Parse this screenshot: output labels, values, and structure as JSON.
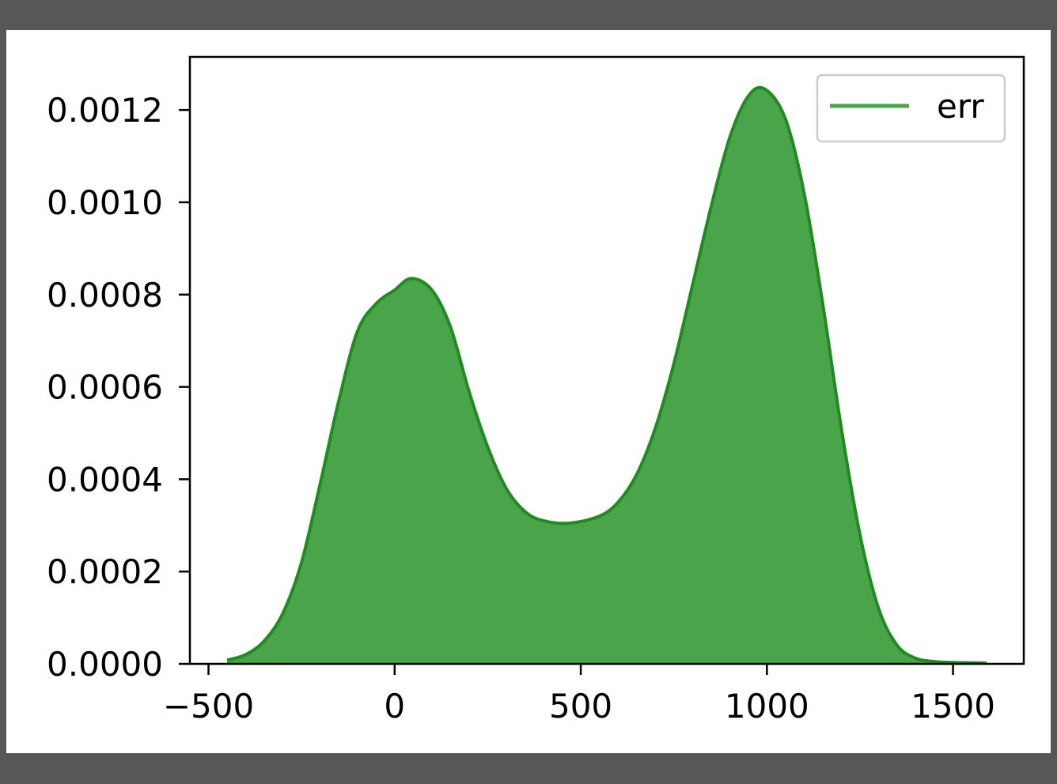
{
  "chart_data": {
    "type": "area",
    "title": "",
    "xlabel": "",
    "ylabel": "",
    "xlim": [
      -550,
      1690
    ],
    "ylim": [
      0,
      0.001315
    ],
    "grid": false,
    "legend_position": "top-right",
    "x_ticks": [
      {
        "value": -500,
        "label": "−500"
      },
      {
        "value": 0,
        "label": "0"
      },
      {
        "value": 500,
        "label": "500"
      },
      {
        "value": 1000,
        "label": "1000"
      },
      {
        "value": 1500,
        "label": "1500"
      }
    ],
    "y_ticks": [
      {
        "value": 0,
        "label": "0.0000"
      },
      {
        "value": 0.0002,
        "label": "0.0002"
      },
      {
        "value": 0.0004,
        "label": "0.0004"
      },
      {
        "value": 0.0006,
        "label": "0.0006"
      },
      {
        "value": 0.0008,
        "label": "0.0008"
      },
      {
        "value": 0.001,
        "label": "0.0010"
      },
      {
        "value": 0.0012,
        "label": "0.0012"
      }
    ],
    "series": [
      {
        "name": "err",
        "color": "#2ca02c",
        "line_color": "#1f8c1f",
        "fill_color": "#4aa44a",
        "points": [
          [
            -450,
            8e-06
          ],
          [
            -400,
            2e-05
          ],
          [
            -350,
            5e-05
          ],
          [
            -300,
            0.00011
          ],
          [
            -250,
            0.00022
          ],
          [
            -200,
            0.00039
          ],
          [
            -150,
            0.00057
          ],
          [
            -100,
            0.00072
          ],
          [
            -50,
            0.00078
          ],
          [
            0,
            0.00081
          ],
          [
            45,
            0.000835
          ],
          [
            100,
            0.00081
          ],
          [
            150,
            0.00073
          ],
          [
            200,
            0.00059
          ],
          [
            250,
            0.00047
          ],
          [
            300,
            0.00038
          ],
          [
            350,
            0.00033
          ],
          [
            400,
            0.00031
          ],
          [
            470,
            0.000305
          ],
          [
            550,
            0.00032
          ],
          [
            600,
            0.00035
          ],
          [
            650,
            0.00041
          ],
          [
            700,
            0.00051
          ],
          [
            750,
            0.00065
          ],
          [
            800,
            0.00082
          ],
          [
            850,
            0.00099
          ],
          [
            900,
            0.00114
          ],
          [
            950,
            0.00123
          ],
          [
            995,
            0.001245
          ],
          [
            1050,
            0.00118
          ],
          [
            1100,
            0.00102
          ],
          [
            1150,
            0.00078
          ],
          [
            1200,
            0.00051
          ],
          [
            1250,
            0.00028
          ],
          [
            1300,
            0.00012
          ],
          [
            1350,
            4e-05
          ],
          [
            1400,
            1.2e-05
          ],
          [
            1450,
            5e-06
          ],
          [
            1500,
            3e-06
          ],
          [
            1590,
            2e-06
          ]
        ]
      }
    ]
  }
}
